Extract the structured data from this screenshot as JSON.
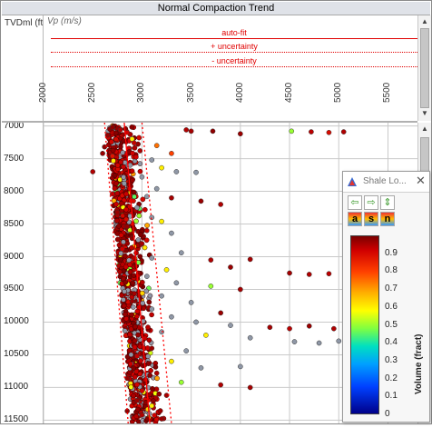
{
  "window": {
    "title": "Normal Compaction Trend"
  },
  "left_axis": {
    "label": "TVDml (ft)"
  },
  "header_track": {
    "curve_label": "Vp (m/s)",
    "x_ticks": [
      "2000",
      "2500",
      "3000",
      "3500",
      "4000",
      "4500",
      "5000",
      "5500"
    ],
    "legend": [
      {
        "text": "auto-fit",
        "style": "solid"
      },
      {
        "text": "+ uncertainty",
        "style": "dotted"
      },
      {
        "text": "- uncertainty",
        "style": "dotted"
      }
    ]
  },
  "depth_ticks": [
    "7000",
    "7500",
    "8000",
    "8500",
    "9000",
    "9500",
    "10000",
    "10500",
    "11000",
    "11500"
  ],
  "colors": {
    "trend": "#ff0000",
    "grid": "#c9c9c9",
    "title_bg": "#dfe2e8"
  },
  "shale_window": {
    "title": "Shale Lo...",
    "tools": [
      {
        "name": "arrow-left-icon",
        "glyph": "⇦"
      },
      {
        "name": "arrow-right-icon",
        "glyph": "⇨"
      },
      {
        "name": "arrow-updown-icon",
        "glyph": "⇕"
      },
      {
        "name": "color-a-icon",
        "glyph": "a"
      },
      {
        "name": "color-s-icon",
        "glyph": "s"
      },
      {
        "name": "color-n-icon",
        "glyph": "n"
      }
    ],
    "colorbar_ticks": [
      "0.9",
      "0.8",
      "0.7",
      "0.6",
      "0.5",
      "0.4",
      "0.3",
      "0.2",
      "0.1",
      "0"
    ],
    "colorbar_label": "Volume (fract)"
  },
  "chart_data": {
    "type": "scatter",
    "x_unit": "Vp (m/s)",
    "xlim": [
      2000,
      5800
    ],
    "ylim": [
      6950,
      11550
    ],
    "y_unit": "TVDml (ft)",
    "color_variable": "Volume (fract)",
    "color_range": [
      0,
      1
    ],
    "trend": {
      "auto_fit": [
        [
          2820,
          6950
        ],
        [
          3080,
          11550
        ]
      ],
      "plus_uncertainty": [
        [
          3000,
          6950
        ],
        [
          3300,
          11550
        ]
      ],
      "minus_uncertainty": [
        [
          2620,
          6950
        ],
        [
          2860,
          11550
        ]
      ]
    },
    "points": [
      [
        2700,
        7020,
        0.98
      ],
      [
        2780,
        7060,
        0.95
      ],
      [
        2850,
        7100,
        0.92
      ],
      [
        2650,
        7140,
        0.97
      ],
      [
        2900,
        7200,
        0.6
      ],
      [
        2920,
        7260,
        0.93
      ],
      [
        2620,
        7320,
        0.98
      ],
      [
        2980,
        7380,
        0.95
      ],
      [
        2600,
        7420,
        0.97
      ],
      [
        2700,
        7460,
        0.88
      ],
      [
        3450,
        7060,
        0.95
      ],
      [
        3500,
        7080,
        0.96
      ],
      [
        3720,
        7080,
        0.98
      ],
      [
        4000,
        7120,
        0.97
      ],
      [
        4520,
        7080,
        0.5
      ],
      [
        4720,
        7090,
        0.94
      ],
      [
        4900,
        7100,
        0.9
      ],
      [
        5050,
        7090,
        0.95
      ],
      [
        3150,
        7300,
        0.75
      ],
      [
        3300,
        7420,
        0.8
      ],
      [
        3100,
        7520,
        0.35
      ],
      [
        2880,
        7600,
        0.3
      ],
      [
        3200,
        7640,
        0.6
      ],
      [
        2500,
        7700,
        0.95
      ],
      [
        3350,
        7700,
        0.2
      ],
      [
        3550,
        7710,
        0.28
      ],
      [
        3000,
        7780,
        0.25
      ],
      [
        2820,
        7880,
        0.4
      ],
      [
        3150,
        7960,
        0.22
      ],
      [
        2700,
        8040,
        0.93
      ],
      [
        3050,
        8080,
        0.26
      ],
      [
        3300,
        8100,
        0.96
      ],
      [
        3600,
        8150,
        0.97
      ],
      [
        3800,
        8200,
        0.95
      ],
      [
        2950,
        8250,
        0.35
      ],
      [
        2750,
        8320,
        0.97
      ],
      [
        3100,
        8400,
        0.3
      ],
      [
        3200,
        8460,
        0.6
      ],
      [
        2850,
        8540,
        0.97
      ],
      [
        3050,
        8600,
        0.93
      ],
      [
        3300,
        8640,
        0.22
      ],
      [
        2900,
        8720,
        0.98
      ],
      [
        3000,
        8800,
        0.96
      ],
      [
        2800,
        8880,
        0.92
      ],
      [
        3400,
        8940,
        0.3
      ],
      [
        3100,
        9020,
        0.25
      ],
      [
        3700,
        9050,
        0.95
      ],
      [
        4100,
        9040,
        0.96
      ],
      [
        3900,
        9160,
        0.97
      ],
      [
        3250,
        9200,
        0.6
      ],
      [
        4500,
        9250,
        0.96
      ],
      [
        4700,
        9270,
        0.95
      ],
      [
        4900,
        9260,
        0.94
      ],
      [
        5100,
        9270,
        0.96
      ],
      [
        3050,
        9300,
        0.23
      ],
      [
        3350,
        9400,
        0.3
      ],
      [
        3700,
        9450,
        0.5
      ],
      [
        4000,
        9500,
        0.96
      ],
      [
        3200,
        9600,
        0.26
      ],
      [
        2900,
        9680,
        0.97
      ],
      [
        3500,
        9700,
        0.28
      ],
      [
        3100,
        9800,
        0.35
      ],
      [
        3800,
        9860,
        0.97
      ],
      [
        3300,
        9920,
        0.22
      ],
      [
        3550,
        10000,
        0.2
      ],
      [
        3900,
        10050,
        0.25
      ],
      [
        4300,
        10080,
        0.96
      ],
      [
        4500,
        10100,
        0.94
      ],
      [
        4700,
        10060,
        0.97
      ],
      [
        4950,
        10100,
        0.95
      ],
      [
        3200,
        10150,
        0.3
      ],
      [
        3650,
        10200,
        0.6
      ],
      [
        4100,
        10240,
        0.25
      ],
      [
        4550,
        10300,
        0.22
      ],
      [
        4800,
        10320,
        0.3
      ],
      [
        5000,
        10290,
        0.26
      ],
      [
        3100,
        10400,
        0.97
      ],
      [
        3450,
        10440,
        0.2
      ],
      [
        2950,
        10520,
        0.93
      ],
      [
        3300,
        10600,
        0.6
      ],
      [
        3600,
        10700,
        0.25
      ],
      [
        4000,
        10680,
        0.28
      ],
      [
        3150,
        10780,
        0.95
      ],
      [
        2850,
        10860,
        0.97
      ],
      [
        3400,
        10920,
        0.5
      ],
      [
        3800,
        10960,
        0.95
      ],
      [
        4100,
        11000,
        0.96
      ],
      [
        3000,
        11050,
        0.92
      ],
      [
        3250,
        11120,
        0.96
      ],
      [
        2950,
        11200,
        0.97
      ],
      [
        3100,
        11280,
        0.6
      ],
      [
        2850,
        11360,
        0.98
      ],
      [
        3000,
        11420,
        0.95
      ],
      [
        3200,
        11480,
        0.97
      ]
    ]
  }
}
